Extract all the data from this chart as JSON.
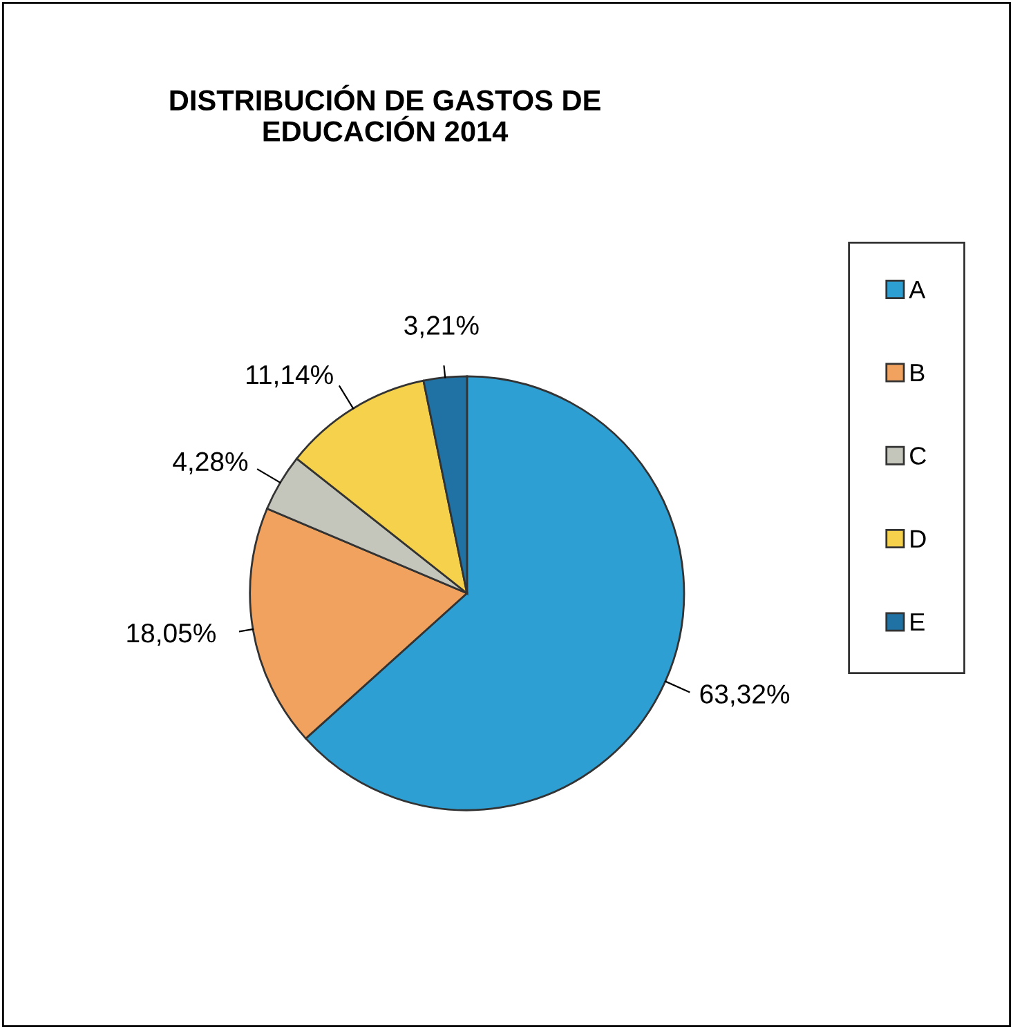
{
  "chart_data": {
    "type": "pie",
    "title": "DISTRIBUCIÓN DE GASTOS DE\nEDUCACIÓN 2014",
    "categories": [
      "A",
      "B",
      "C",
      "D",
      "E"
    ],
    "values": [
      63.32,
      18.05,
      4.28,
      11.14,
      3.21
    ],
    "value_labels": [
      "63,32%",
      "18,05%",
      "4,28%",
      "11,14%",
      "3,21%"
    ],
    "colors": [
      "#2e9fd3",
      "#f0a25e",
      "#c4c6bc",
      "#f6d24c",
      "#1f72a3"
    ],
    "legend": "right"
  }
}
